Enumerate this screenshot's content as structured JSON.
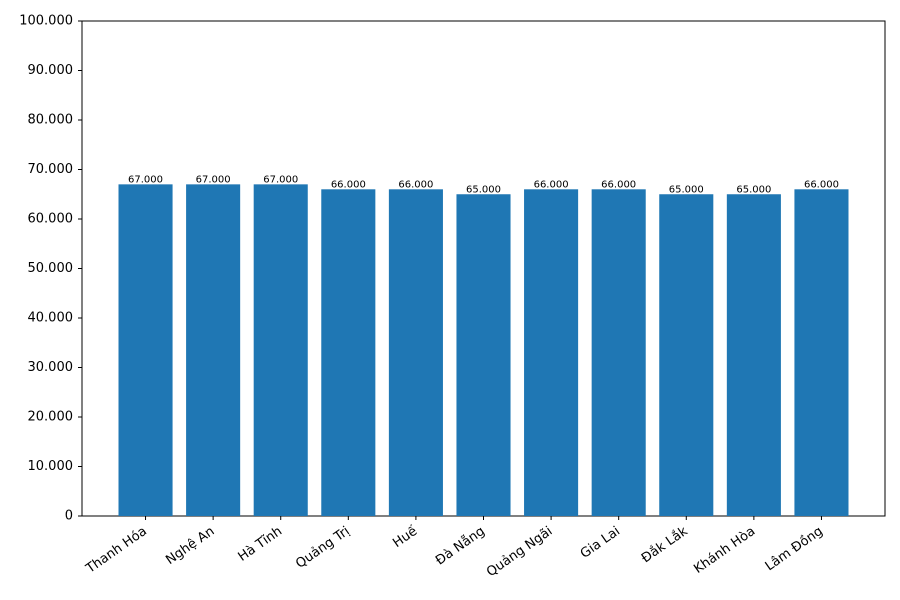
{
  "chart_data": {
    "type": "bar",
    "categories": [
      "Thanh Hóa",
      "Nghệ An",
      "Hà Tĩnh",
      "Quảng Trị",
      "Huế",
      "Đà Nẵng",
      "Quảng Ngãi",
      "Gia Lai",
      "Đắk Lắk",
      "Khánh Hòa",
      "Lâm Đồng"
    ],
    "values": [
      67000,
      67000,
      67000,
      66000,
      66000,
      65000,
      66000,
      66000,
      65000,
      65000,
      66000
    ],
    "value_labels": [
      "67.000",
      "67.000",
      "67.000",
      "66.000",
      "66.000",
      "65.000",
      "66.000",
      "66.000",
      "65.000",
      "65.000",
      "66.000"
    ],
    "color": "#1f77b4",
    "ylim": [
      0,
      100000
    ],
    "yticks": [
      0,
      {
        "value": 10000,
        "label": "10.000"
      },
      {
        "value": 20000,
        "label": "20.000"
      },
      {
        "value": 30000,
        "label": "30.000"
      },
      {
        "value": 40000,
        "label": "40.000"
      },
      {
        "value": 50000,
        "label": "50.000"
      },
      {
        "value": 60000,
        "label": "60.000"
      },
      {
        "value": 70000,
        "label": "70.000"
      },
      {
        "value": 80000,
        "label": "80.000"
      },
      {
        "value": 90000,
        "label": "90.000"
      },
      {
        "value": 100000,
        "label": "100.000"
      }
    ],
    "grid": false
  }
}
